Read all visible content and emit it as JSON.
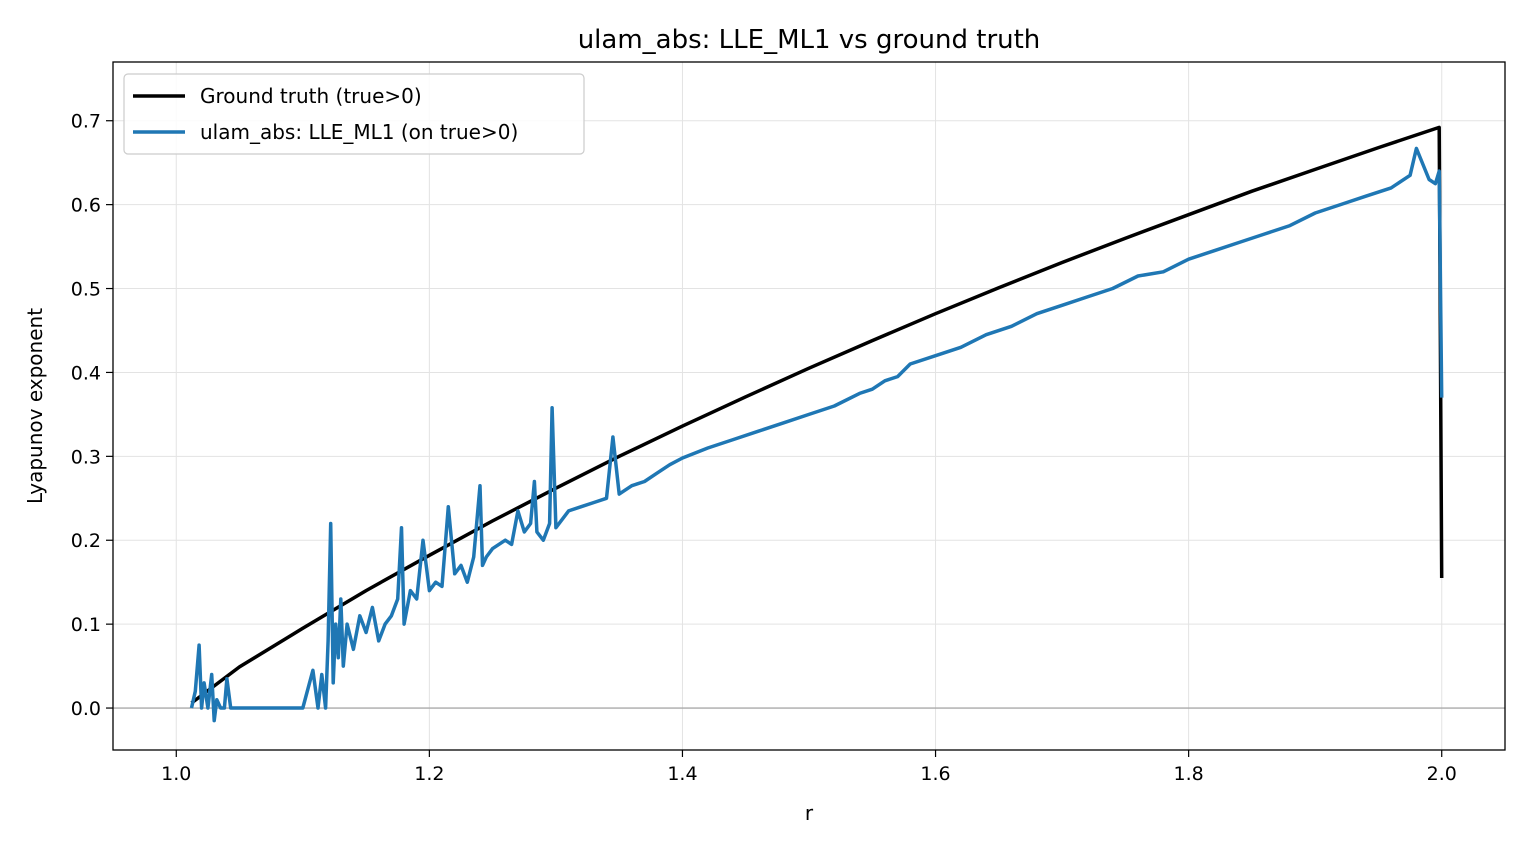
{
  "chart_data": {
    "type": "line",
    "title": "ulam_abs: LLE_ML1 vs ground truth",
    "xlabel": "r",
    "ylabel": "Lyapunov exponent",
    "xlim": [
      0.95,
      2.05
    ],
    "ylim": [
      -0.05,
      0.77
    ],
    "xticks": [
      1.0,
      1.2,
      1.4,
      1.6,
      1.8,
      2.0
    ],
    "xtick_labels": [
      "1.0",
      "1.2",
      "1.4",
      "1.6",
      "1.8",
      "2.0"
    ],
    "yticks": [
      0.0,
      0.1,
      0.2,
      0.3,
      0.4,
      0.5,
      0.6,
      0.7
    ],
    "ytick_labels": [
      "0.0",
      "0.1",
      "0.2",
      "0.3",
      "0.4",
      "0.5",
      "0.6",
      "0.7"
    ],
    "grid": true,
    "legend_position": "upper-left",
    "zero_line": true,
    "series": [
      {
        "name": "Ground truth (true>0)",
        "color": "#000000",
        "x": [
          1.012,
          1.05,
          1.1,
          1.15,
          1.2,
          1.25,
          1.3,
          1.35,
          1.4,
          1.45,
          1.5,
          1.55,
          1.6,
          1.65,
          1.7,
          1.75,
          1.8,
          1.85,
          1.9,
          1.95,
          1.998,
          2.0
        ],
        "y": [
          0.006,
          0.049,
          0.095,
          0.14,
          0.182,
          0.223,
          0.262,
          0.3,
          0.336,
          0.371,
          0.405,
          0.438,
          0.47,
          0.501,
          0.531,
          0.56,
          0.588,
          0.616,
          0.642,
          0.668,
          0.692,
          0.155
        ]
      },
      {
        "name": "ulam_abs: LLE_ML1 (on true>0)",
        "color": "#1f77b4",
        "x": [
          1.012,
          1.015,
          1.018,
          1.02,
          1.022,
          1.025,
          1.028,
          1.03,
          1.032,
          1.035,
          1.038,
          1.04,
          1.043,
          1.05,
          1.1,
          1.108,
          1.112,
          1.115,
          1.118,
          1.12,
          1.122,
          1.124,
          1.126,
          1.128,
          1.13,
          1.132,
          1.135,
          1.14,
          1.145,
          1.15,
          1.155,
          1.16,
          1.165,
          1.17,
          1.175,
          1.178,
          1.18,
          1.185,
          1.19,
          1.195,
          1.2,
          1.205,
          1.21,
          1.215,
          1.22,
          1.225,
          1.23,
          1.235,
          1.24,
          1.242,
          1.245,
          1.25,
          1.26,
          1.265,
          1.27,
          1.275,
          1.28,
          1.283,
          1.285,
          1.29,
          1.295,
          1.297,
          1.3,
          1.31,
          1.32,
          1.33,
          1.34,
          1.345,
          1.35,
          1.36,
          1.37,
          1.38,
          1.39,
          1.4,
          1.42,
          1.44,
          1.46,
          1.48,
          1.5,
          1.52,
          1.54,
          1.55,
          1.56,
          1.57,
          1.58,
          1.6,
          1.62,
          1.64,
          1.66,
          1.68,
          1.7,
          1.72,
          1.74,
          1.76,
          1.78,
          1.8,
          1.82,
          1.84,
          1.86,
          1.88,
          1.9,
          1.92,
          1.94,
          1.96,
          1.975,
          1.98,
          1.99,
          1.995,
          1.998,
          2.0
        ],
        "y": [
          0.0,
          0.02,
          0.075,
          0.0,
          0.03,
          0.0,
          0.04,
          -0.015,
          0.01,
          0.0,
          0.0,
          0.035,
          0.0,
          0.0,
          0.0,
          0.045,
          0.0,
          0.04,
          0.0,
          0.08,
          0.22,
          0.03,
          0.1,
          0.06,
          0.13,
          0.05,
          0.1,
          0.07,
          0.11,
          0.09,
          0.12,
          0.08,
          0.1,
          0.11,
          0.13,
          0.215,
          0.1,
          0.14,
          0.13,
          0.2,
          0.14,
          0.15,
          0.145,
          0.24,
          0.16,
          0.17,
          0.15,
          0.18,
          0.265,
          0.17,
          0.18,
          0.19,
          0.2,
          0.195,
          0.235,
          0.21,
          0.22,
          0.27,
          0.21,
          0.2,
          0.22,
          0.358,
          0.215,
          0.235,
          0.24,
          0.245,
          0.25,
          0.323,
          0.255,
          0.265,
          0.27,
          0.28,
          0.29,
          0.298,
          0.31,
          0.32,
          0.33,
          0.34,
          0.35,
          0.36,
          0.375,
          0.38,
          0.39,
          0.395,
          0.41,
          0.42,
          0.43,
          0.445,
          0.455,
          0.47,
          0.48,
          0.49,
          0.5,
          0.515,
          0.52,
          0.535,
          0.545,
          0.555,
          0.565,
          0.575,
          0.59,
          0.6,
          0.61,
          0.62,
          0.635,
          0.667,
          0.63,
          0.625,
          0.64,
          0.37
        ]
      }
    ]
  }
}
